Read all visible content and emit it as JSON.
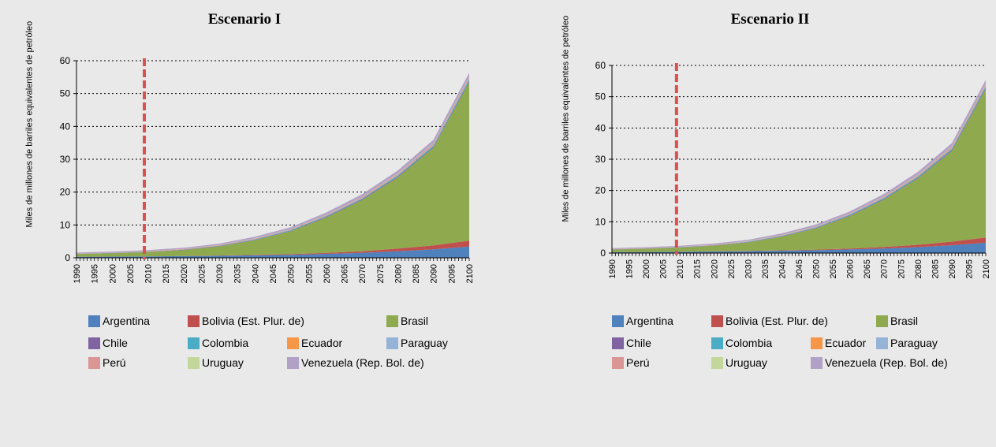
{
  "chart_data": [
    {
      "type": "area",
      "stacked": true,
      "title": "Escenario I",
      "ylabel": "Miles de millones de barriles equivalentes de petróleo",
      "ylim": [
        0,
        60
      ],
      "yticks": [
        0,
        10,
        20,
        30,
        40,
        50,
        60
      ],
      "x": [
        1990,
        2000,
        2010,
        2020,
        2030,
        2040,
        2050,
        2060,
        2070,
        2080,
        2090,
        2100
      ],
      "xtick_labels": [
        1990,
        1995,
        2000,
        2005,
        2010,
        2015,
        2020,
        2025,
        2030,
        2035,
        2040,
        2045,
        2050,
        2055,
        2060,
        2065,
        2070,
        2075,
        2080,
        2085,
        2090,
        2095,
        2100
      ],
      "grid": "horizontal-dotted",
      "marker_year": 2009,
      "legend_position": "bottom",
      "series": [
        {
          "name": "Argentina",
          "color": "#4f81bd",
          "values": [
            0.3,
            0.35,
            0.4,
            0.5,
            0.6,
            0.75,
            0.9,
            1.2,
            1.5,
            2.0,
            2.6,
            3.4
          ]
        },
        {
          "name": "Bolivia (Est. Plur. de)",
          "color": "#c0504d",
          "values": [
            0.02,
            0.03,
            0.04,
            0.06,
            0.09,
            0.13,
            0.2,
            0.32,
            0.5,
            0.8,
            1.2,
            1.8
          ]
        },
        {
          "name": "Brasil",
          "color": "#8faa4e",
          "values": [
            0.8,
            1.0,
            1.3,
            1.8,
            2.8,
            4.5,
            7.0,
            10.8,
            15.6,
            21.7,
            29.7,
            48.3
          ]
        },
        {
          "name": "Chile",
          "color": "#8064a2",
          "values": [
            0.05,
            0.06,
            0.07,
            0.08,
            0.1,
            0.12,
            0.15,
            0.18,
            0.22,
            0.26,
            0.3,
            0.35
          ]
        },
        {
          "name": "Colombia",
          "color": "#4bacc6",
          "values": [
            0.05,
            0.06,
            0.07,
            0.09,
            0.11,
            0.14,
            0.17,
            0.21,
            0.26,
            0.32,
            0.38,
            0.45
          ]
        },
        {
          "name": "Ecuador",
          "color": "#f79646",
          "values": [
            0.02,
            0.02,
            0.03,
            0.03,
            0.04,
            0.05,
            0.06,
            0.07,
            0.08,
            0.1,
            0.12,
            0.14
          ]
        },
        {
          "name": "Paraguay",
          "color": "#95b3d7",
          "values": [
            0.02,
            0.02,
            0.03,
            0.03,
            0.04,
            0.05,
            0.06,
            0.08,
            0.1,
            0.12,
            0.15,
            0.18
          ]
        },
        {
          "name": "Perú",
          "color": "#d99694",
          "values": [
            0.05,
            0.06,
            0.07,
            0.09,
            0.11,
            0.14,
            0.17,
            0.21,
            0.26,
            0.32,
            0.38,
            0.45
          ]
        },
        {
          "name": "Uruguay",
          "color": "#c3d69b",
          "values": [
            0.02,
            0.02,
            0.03,
            0.03,
            0.04,
            0.05,
            0.06,
            0.07,
            0.08,
            0.1,
            0.12,
            0.14
          ]
        },
        {
          "name": "Venezuela (Rep. Bol. de)",
          "color": "#b2a1c7",
          "values": [
            0.25,
            0.28,
            0.3,
            0.35,
            0.4,
            0.47,
            0.55,
            0.65,
            0.75,
            0.87,
            1.0,
            1.15
          ]
        }
      ]
    },
    {
      "type": "area",
      "stacked": true,
      "title": "Escenario II",
      "ylabel": "Miles de millones de barriles equivalentes de petróleo",
      "ylim": [
        0,
        60
      ],
      "yticks": [
        0,
        10,
        20,
        30,
        40,
        50,
        60
      ],
      "x": [
        1990,
        2000,
        2010,
        2020,
        2030,
        2040,
        2050,
        2060,
        2070,
        2080,
        2090,
        2100
      ],
      "xtick_labels": [
        1990,
        1995,
        2000,
        2005,
        2010,
        2015,
        2020,
        2025,
        2030,
        2035,
        2040,
        2045,
        2050,
        2055,
        2060,
        2065,
        2070,
        2075,
        2080,
        2085,
        2090,
        2095,
        2100
      ],
      "grid": "horizontal-dotted",
      "marker_year": 2009,
      "legend_position": "bottom",
      "series": [
        {
          "name": "Argentina",
          "color": "#4f81bd",
          "values": [
            0.3,
            0.35,
            0.4,
            0.5,
            0.6,
            0.75,
            0.9,
            1.15,
            1.45,
            1.9,
            2.5,
            3.3
          ]
        },
        {
          "name": "Bolivia (Est. Plur. de)",
          "color": "#c0504d",
          "values": [
            0.02,
            0.03,
            0.04,
            0.06,
            0.09,
            0.13,
            0.2,
            0.3,
            0.48,
            0.75,
            1.15,
            1.7
          ]
        },
        {
          "name": "Brasil",
          "color": "#8faa4e",
          "values": [
            0.8,
            1.0,
            1.3,
            1.8,
            2.7,
            4.4,
            6.8,
            10.4,
            15.2,
            21.2,
            29.0,
            47.5
          ]
        },
        {
          "name": "Chile",
          "color": "#8064a2",
          "values": [
            0.05,
            0.06,
            0.07,
            0.08,
            0.1,
            0.12,
            0.15,
            0.18,
            0.22,
            0.26,
            0.3,
            0.35
          ]
        },
        {
          "name": "Colombia",
          "color": "#4bacc6",
          "values": [
            0.05,
            0.06,
            0.07,
            0.09,
            0.11,
            0.14,
            0.17,
            0.21,
            0.26,
            0.32,
            0.38,
            0.45
          ]
        },
        {
          "name": "Ecuador",
          "color": "#f79646",
          "values": [
            0.02,
            0.02,
            0.03,
            0.03,
            0.04,
            0.05,
            0.06,
            0.07,
            0.08,
            0.1,
            0.12,
            0.14
          ]
        },
        {
          "name": "Paraguay",
          "color": "#95b3d7",
          "values": [
            0.02,
            0.02,
            0.03,
            0.03,
            0.04,
            0.05,
            0.06,
            0.08,
            0.1,
            0.12,
            0.15,
            0.18
          ]
        },
        {
          "name": "Perú",
          "color": "#d99694",
          "values": [
            0.05,
            0.06,
            0.07,
            0.09,
            0.11,
            0.14,
            0.17,
            0.21,
            0.26,
            0.32,
            0.38,
            0.45
          ]
        },
        {
          "name": "Uruguay",
          "color": "#c3d69b",
          "values": [
            0.02,
            0.02,
            0.03,
            0.03,
            0.04,
            0.05,
            0.06,
            0.07,
            0.08,
            0.1,
            0.12,
            0.14
          ]
        },
        {
          "name": "Venezuela (Rep. Bol. de)",
          "color": "#b2a1c7",
          "values": [
            0.25,
            0.28,
            0.3,
            0.35,
            0.4,
            0.47,
            0.55,
            0.65,
            0.75,
            0.87,
            1.0,
            1.15
          ]
        }
      ]
    }
  ]
}
